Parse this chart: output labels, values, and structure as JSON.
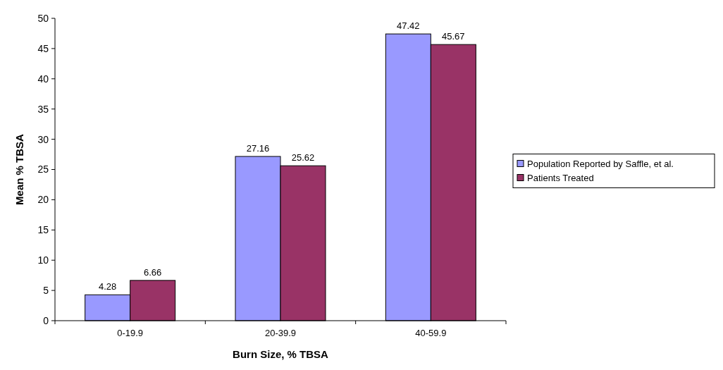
{
  "chart_data": {
    "type": "bar",
    "xlabel": "Burn Size, % TBSA",
    "ylabel": "Mean % TBSA",
    "categories": [
      "0-19.9",
      "20-39.9",
      "40-59.9"
    ],
    "series": [
      {
        "name": "Population Reported by Saffle, et al.",
        "color": "#9999ff",
        "values": [
          4.28,
          27.16,
          47.42
        ]
      },
      {
        "name": "Patients Treated",
        "color": "#993366",
        "values": [
          6.66,
          25.62,
          45.67
        ]
      }
    ],
    "ylim": [
      0,
      50
    ],
    "yticks": [
      0,
      5,
      10,
      15,
      20,
      25,
      30,
      35,
      40,
      45,
      50
    ],
    "data_labels": true,
    "legend": "right",
    "grid": false
  }
}
